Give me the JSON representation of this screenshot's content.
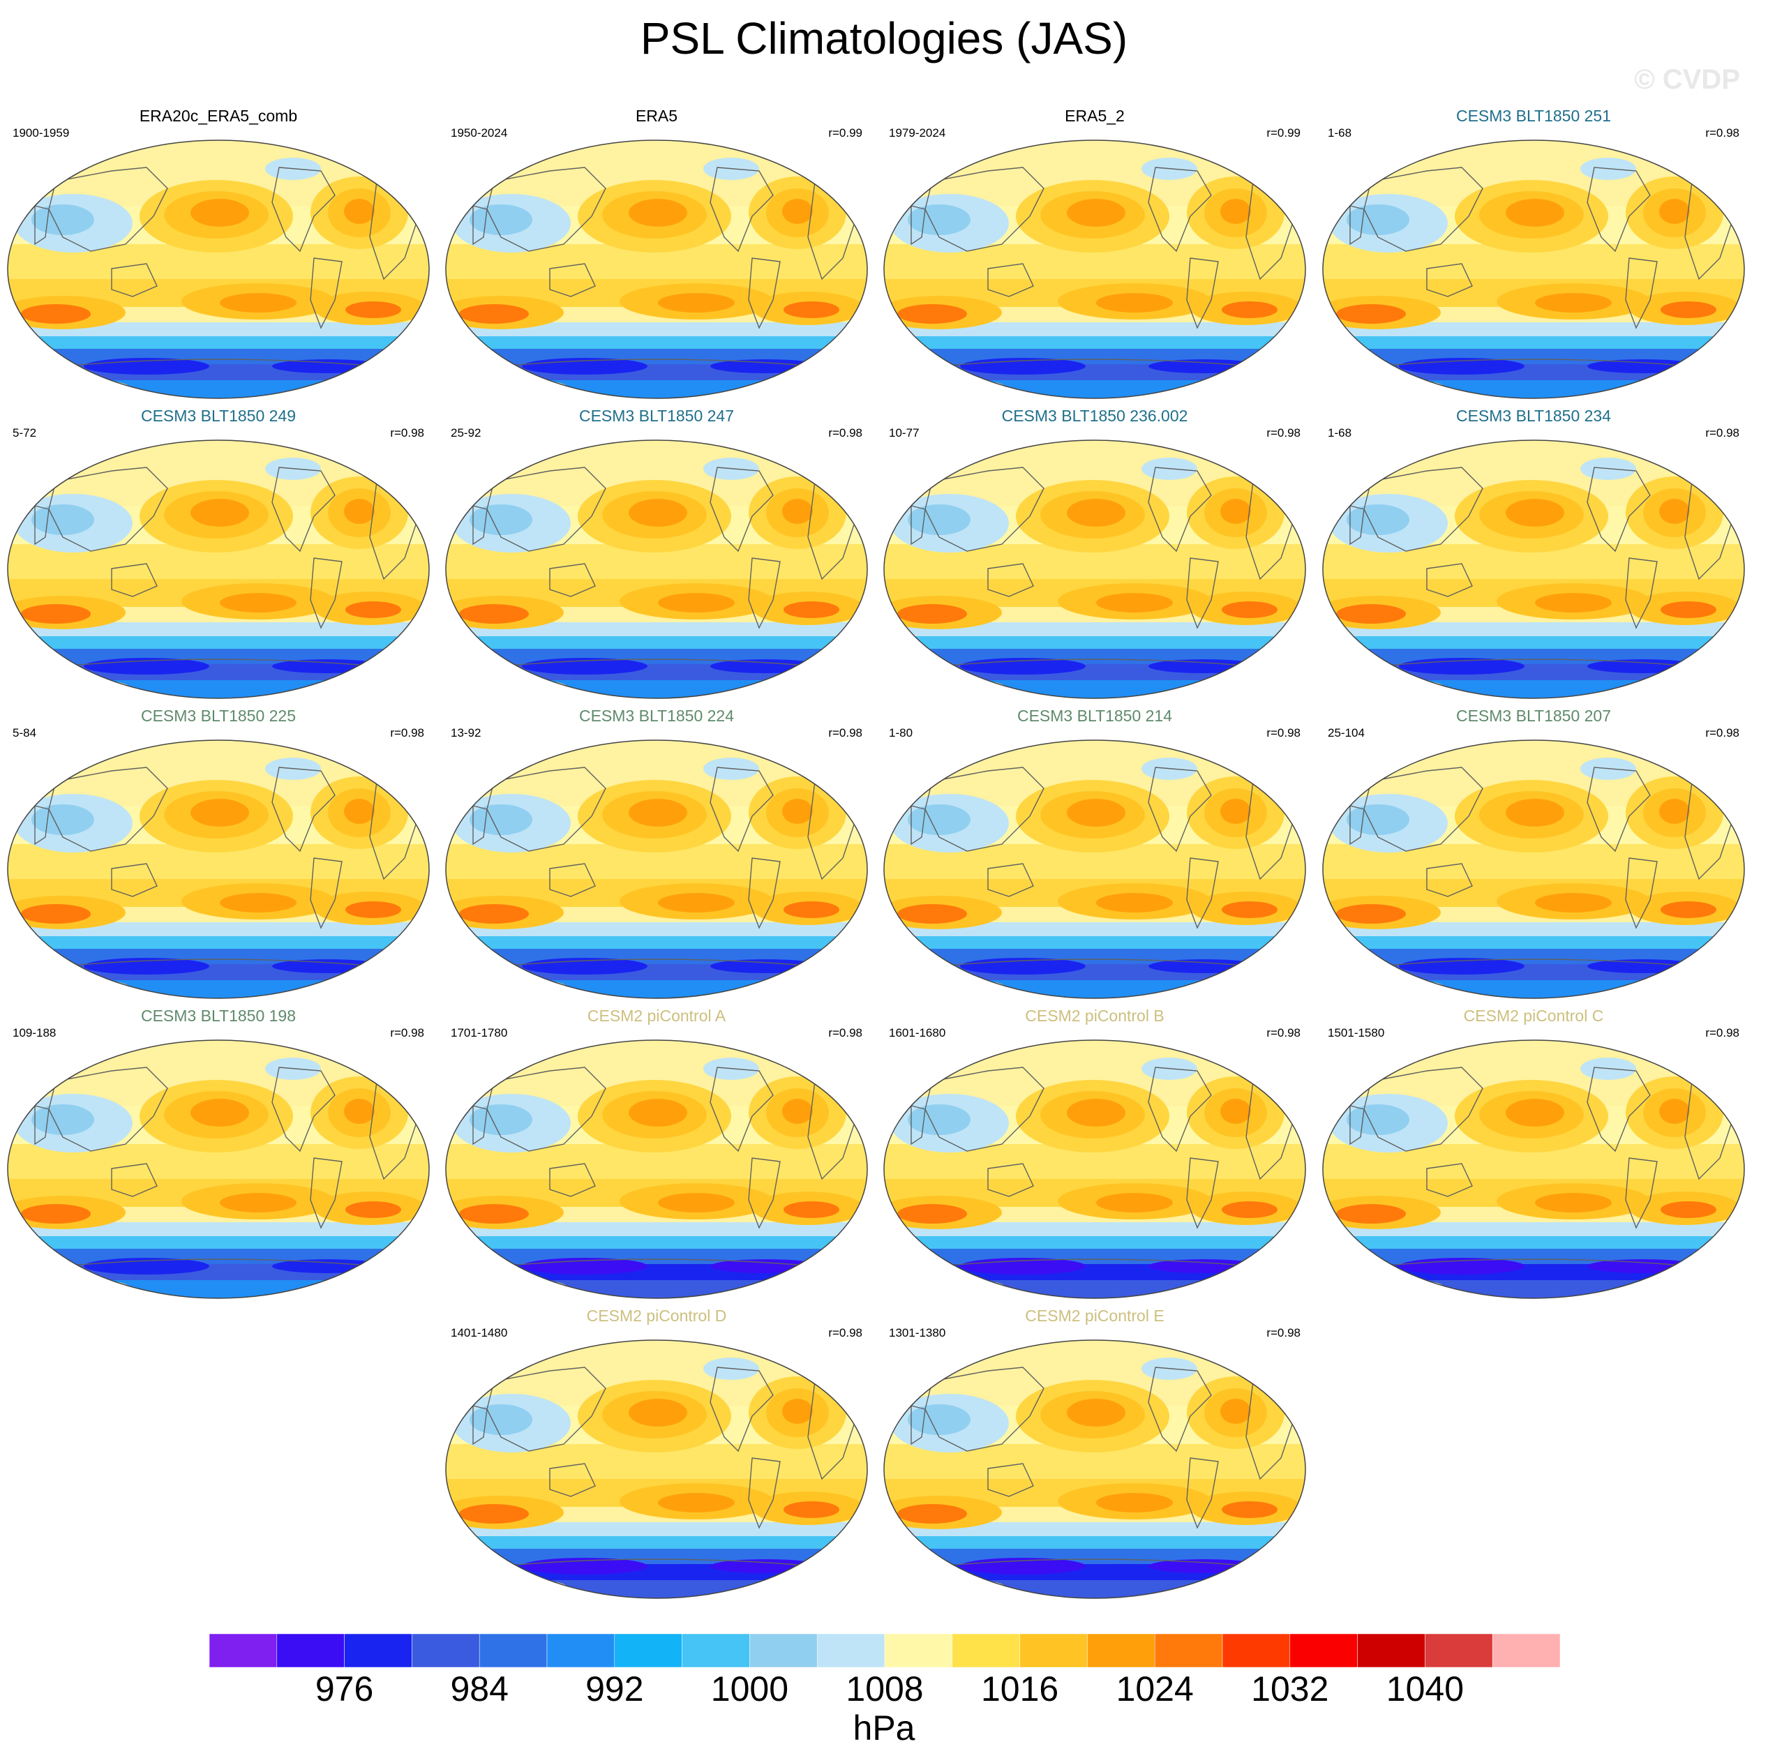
{
  "title": "PSL Climatologies (JAS)",
  "watermark": "© CVDP",
  "panels": [
    {
      "title": "ERA20c_ERA5_comb",
      "years": "1900-1959",
      "r": "",
      "group": "obs"
    },
    {
      "title": "ERA5",
      "years": "1950-2024",
      "r": "r=0.99",
      "group": "obs"
    },
    {
      "title": "ERA5_2",
      "years": "1979-2024",
      "r": "r=0.99",
      "group": "obs"
    },
    {
      "title": "CESM3 BLT1850 251",
      "years": "1-68",
      "r": "r=0.98",
      "group": "cesm3a"
    },
    {
      "title": "CESM3 BLT1850 249",
      "years": "5-72",
      "r": "r=0.98",
      "group": "cesm3a"
    },
    {
      "title": "CESM3 BLT1850 247",
      "years": "25-92",
      "r": "r=0.98",
      "group": "cesm3a"
    },
    {
      "title": "CESM3 BLT1850 236.002",
      "years": "10-77",
      "r": "r=0.98",
      "group": "cesm3a"
    },
    {
      "title": "CESM3 BLT1850 234",
      "years": "1-68",
      "r": "r=0.98",
      "group": "cesm3a"
    },
    {
      "title": "CESM3 BLT1850 225",
      "years": "5-84",
      "r": "r=0.98",
      "group": "cesm3b"
    },
    {
      "title": "CESM3 BLT1850 224",
      "years": "13-92",
      "r": "r=0.98",
      "group": "cesm3b"
    },
    {
      "title": "CESM3 BLT1850 214",
      "years": "1-80",
      "r": "r=0.98",
      "group": "cesm3b"
    },
    {
      "title": "CESM3 BLT1850 207",
      "years": "25-104",
      "r": "r=0.98",
      "group": "cesm3b"
    },
    {
      "title": "CESM3 BLT1850 198",
      "years": "109-188",
      "r": "r=0.98",
      "group": "cesm3b"
    },
    {
      "title": "CESM2 piControl A",
      "years": "1701-1780",
      "r": "r=0.98",
      "group": "cesm2"
    },
    {
      "title": "CESM2 piControl B",
      "years": "1601-1680",
      "r": "r=0.98",
      "group": "cesm2"
    },
    {
      "title": "CESM2 piControl C",
      "years": "1501-1580",
      "r": "r=0.98",
      "group": "cesm2"
    },
    {
      "title": "CESM2 piControl D",
      "years": "1401-1480",
      "r": "r=0.98",
      "group": "cesm2"
    },
    {
      "title": "CESM2 piControl E",
      "years": "1301-1380",
      "r": "r=0.98",
      "group": "cesm2"
    }
  ],
  "title_colors": {
    "obs": "#000000",
    "cesm3a": "#1f6f8b",
    "cesm3b": "#5f8a6b",
    "cesm2": "#cdbf7e"
  },
  "colorbar": {
    "units": "hPa",
    "tick_labels": [
      "976",
      "984",
      "992",
      "1000",
      "1008",
      "1016",
      "1024",
      "1032",
      "1040"
    ],
    "colors": [
      "#7f1ff0",
      "#3a0df5",
      "#1a24f0",
      "#3a5be0",
      "#2f72e8",
      "#218ef5",
      "#13b3f7",
      "#45c4f5",
      "#90cff0",
      "#bfe4f7",
      "#fff8a8",
      "#ffe14a",
      "#ffc424",
      "#ffa00a",
      "#ff7a0a",
      "#ff3a00",
      "#fb0000",
      "#cf0000",
      "#da3b3b",
      "#ffb0b0"
    ]
  }
}
